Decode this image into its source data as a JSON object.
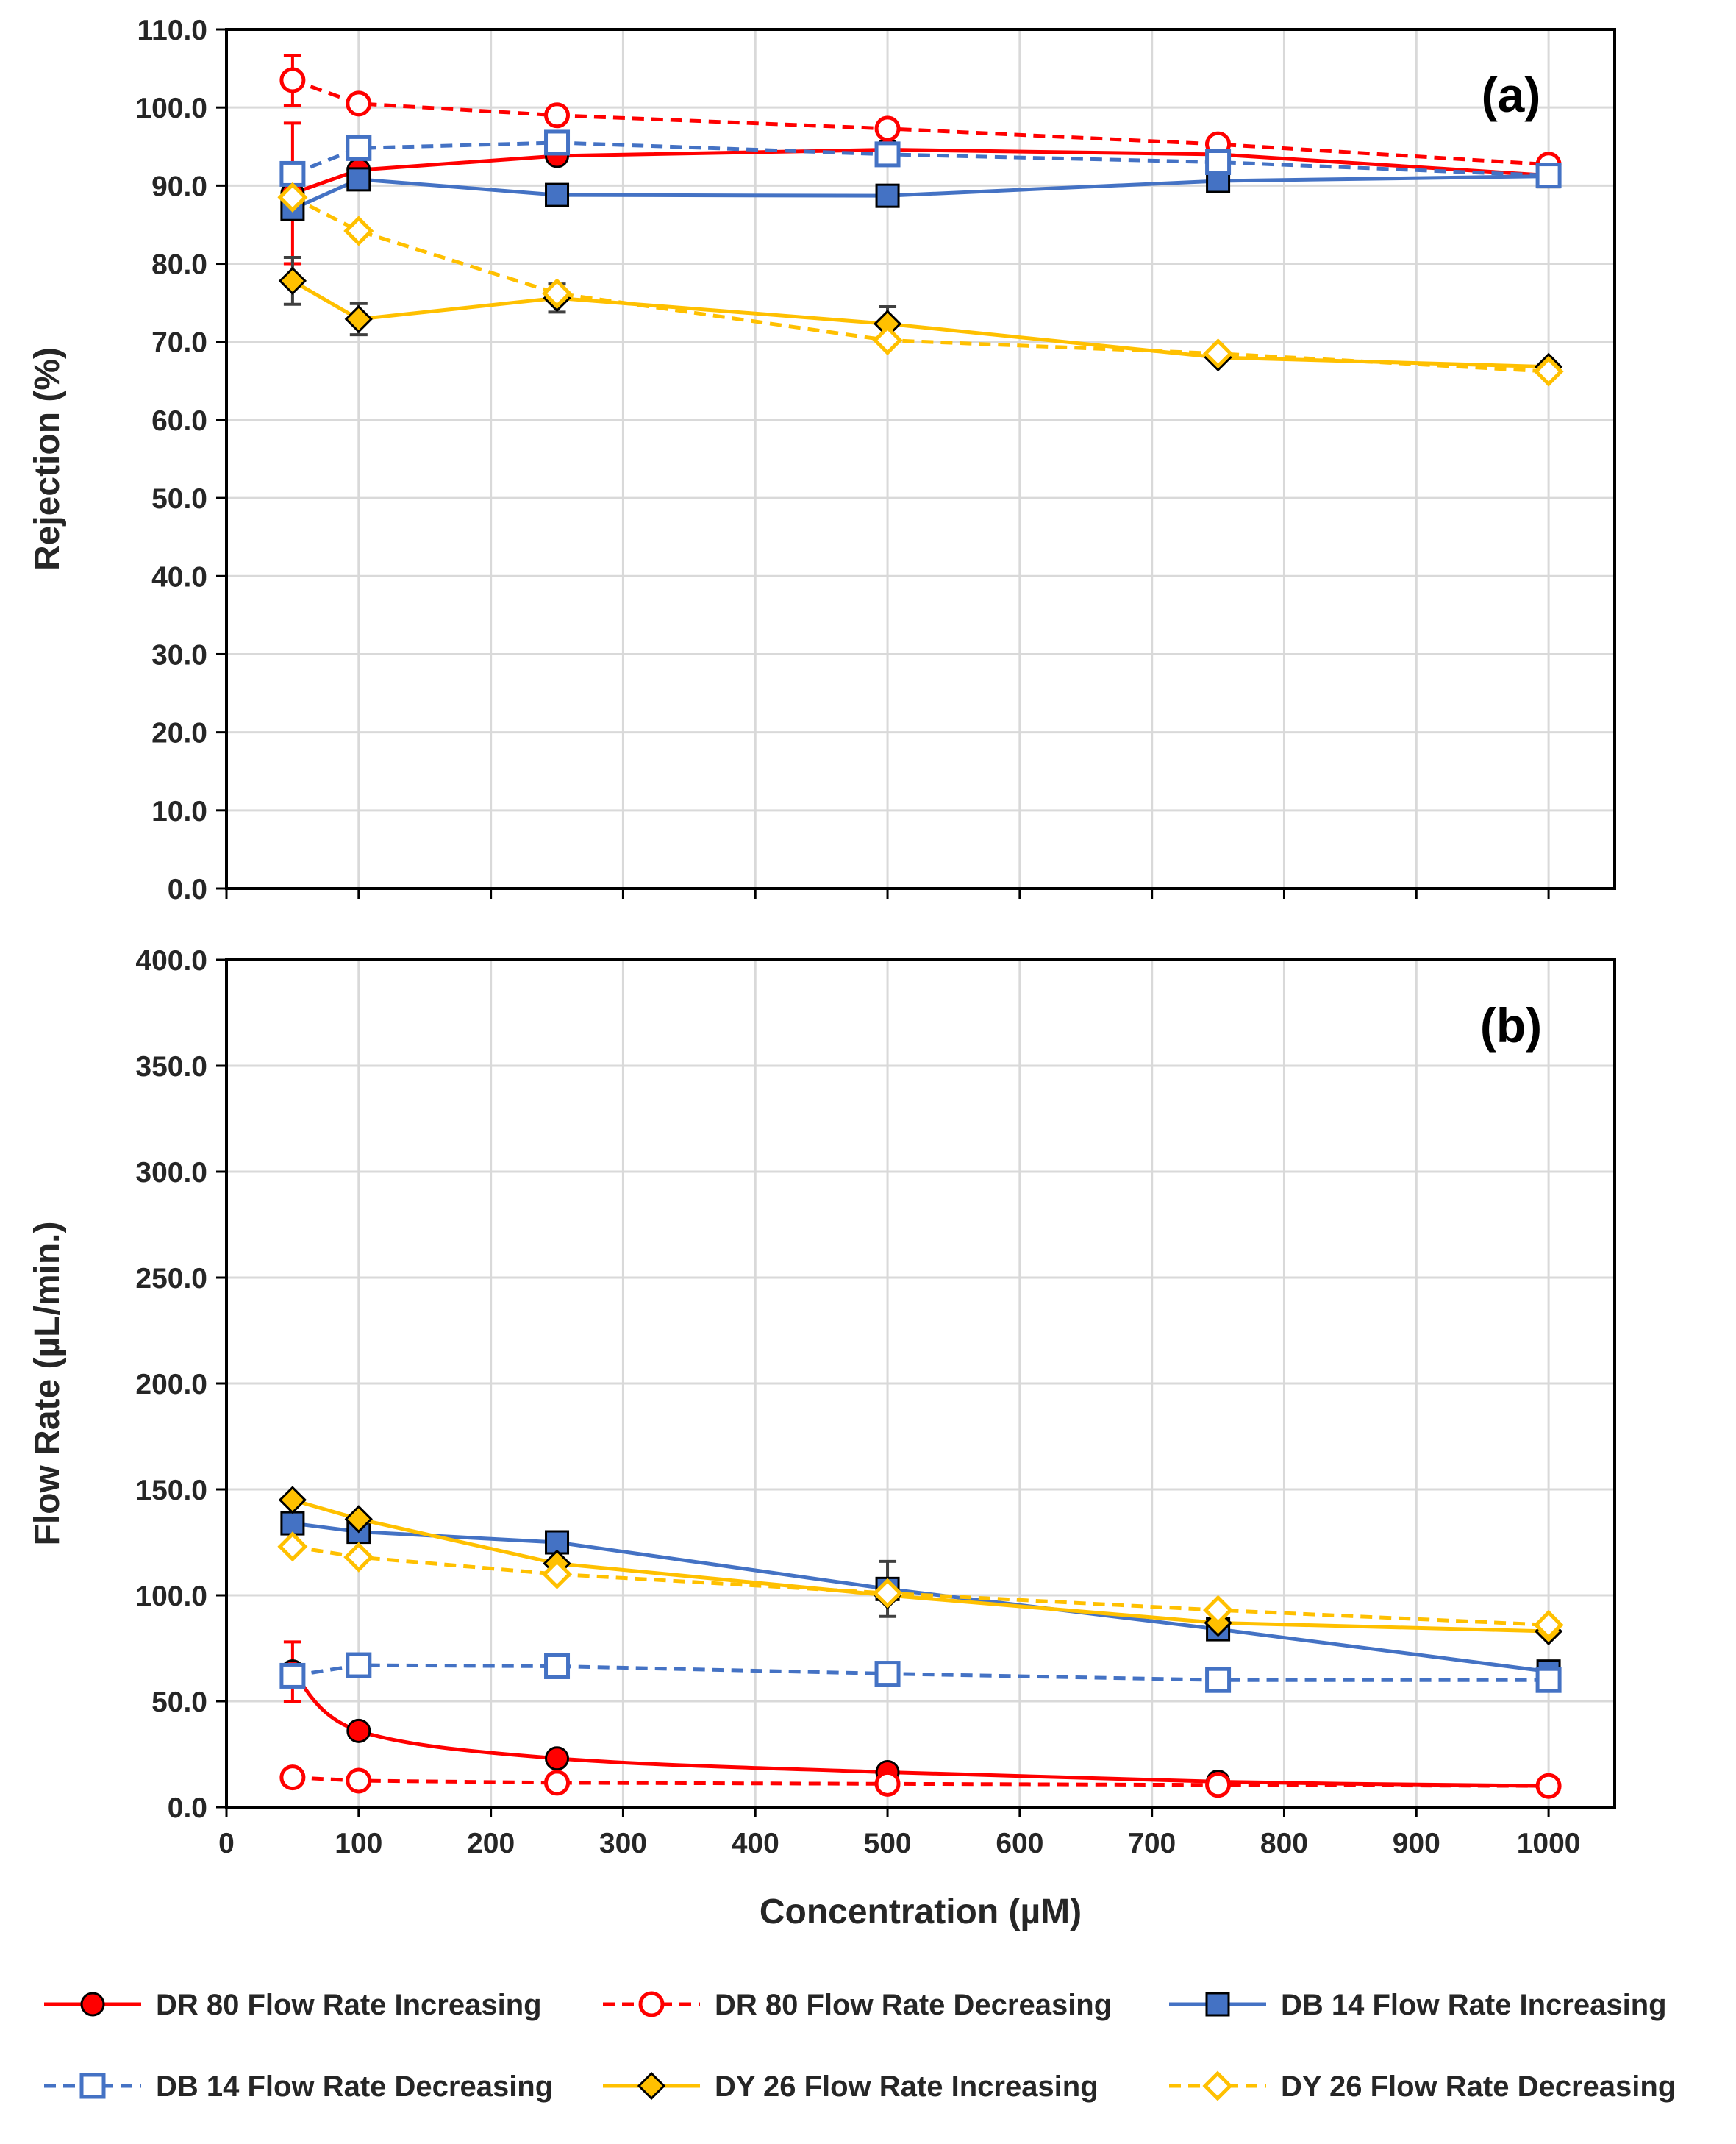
{
  "chart_data": [
    {
      "type": "line",
      "panel": "(a)",
      "xlabel": "",
      "ylabel": "Rejection (%)",
      "xlim": [
        0,
        1050
      ],
      "ylim": [
        0,
        110
      ],
      "yticks": [
        "0.0",
        "10.0",
        "20.0",
        "30.0",
        "40.0",
        "50.0",
        "60.0",
        "70.0",
        "80.0",
        "90.0",
        "100.0",
        "110.0"
      ],
      "xticks": [
        "0",
        "100",
        "200",
        "300",
        "400",
        "500",
        "600",
        "700",
        "800",
        "900",
        "1000"
      ],
      "show_x_tick_labels": false,
      "grid": true,
      "series": [
        {
          "name": "DR 80 Flow Rate Increasing",
          "color": "#ff0000",
          "dash": false,
          "marker": "circle",
          "filled": true,
          "x": [
            50,
            100,
            250,
            500,
            750,
            1000
          ],
          "y": [
            89.0,
            92.0,
            93.8,
            94.6,
            94.0,
            91.3
          ],
          "err": [
            9.0,
            0,
            0,
            0,
            0,
            0
          ]
        },
        {
          "name": "DR 80 Flow Rate Decreasing",
          "color": "#ff0000",
          "dash": true,
          "marker": "circle",
          "filled": false,
          "x": [
            50,
            100,
            250,
            500,
            750,
            1000
          ],
          "y": [
            103.5,
            100.5,
            99.0,
            97.3,
            95.3,
            92.7
          ],
          "err": [
            3.2,
            0,
            0,
            0,
            0,
            0
          ]
        },
        {
          "name": "DB 14 Flow Rate Increasing",
          "color": "#4472c4",
          "dash": false,
          "marker": "square",
          "filled": true,
          "x": [
            50,
            100,
            250,
            500,
            750,
            1000
          ],
          "y": [
            87.0,
            90.8,
            88.8,
            88.7,
            90.6,
            91.2
          ],
          "err": [
            0,
            0,
            0,
            0,
            0,
            0
          ]
        },
        {
          "name": "DB 14 Flow Rate Decreasing",
          "color": "#4472c4",
          "dash": true,
          "marker": "square",
          "filled": false,
          "x": [
            50,
            100,
            250,
            500,
            750,
            1000
          ],
          "y": [
            91.5,
            94.8,
            95.5,
            94.0,
            93.0,
            91.3
          ],
          "err": [
            0,
            0,
            0,
            0,
            0,
            0
          ]
        },
        {
          "name": "DY 26 Flow Rate Increasing",
          "color": "#ffc000",
          "dash": false,
          "marker": "diamond",
          "filled": true,
          "x": [
            50,
            100,
            250,
            500,
            750,
            1000
          ],
          "y": [
            77.8,
            72.9,
            75.6,
            72.3,
            68.0,
            66.8
          ],
          "err": [
            3.0,
            2.0,
            1.8,
            2.2,
            0,
            0
          ]
        },
        {
          "name": "DY 26 Flow Rate Decreasing",
          "color": "#ffc000",
          "dash": true,
          "marker": "diamond",
          "filled": false,
          "x": [
            50,
            100,
            250,
            500,
            750,
            1000
          ],
          "y": [
            88.5,
            84.2,
            76.2,
            70.2,
            68.5,
            66.2
          ],
          "err": [
            0,
            0,
            0,
            0,
            0,
            0
          ]
        }
      ]
    },
    {
      "type": "line",
      "panel": "(b)",
      "xlabel": "Concentration (µM)",
      "ylabel": "Flow Rate (µL/min.)",
      "xlim": [
        0,
        1050
      ],
      "ylim": [
        0,
        400
      ],
      "yticks": [
        "0.0",
        "50.0",
        "100.0",
        "150.0",
        "200.0",
        "250.0",
        "300.0",
        "350.0",
        "400.0"
      ],
      "xticks": [
        "0",
        "100",
        "200",
        "300",
        "400",
        "500",
        "600",
        "700",
        "800",
        "900",
        "1000"
      ],
      "show_x_tick_labels": true,
      "grid": true,
      "series": [
        {
          "name": "DR 80 Flow Rate Increasing",
          "color": "#ff0000",
          "dash": false,
          "marker": "circle",
          "filled": true,
          "smooth": true,
          "x": [
            50,
            100,
            250,
            500,
            750,
            1000
          ],
          "y": [
            64.0,
            36.0,
            23.0,
            16.5,
            12.0,
            10.0
          ],
          "err": [
            14.0,
            0,
            0,
            0,
            0,
            0
          ]
        },
        {
          "name": "DR 80 Flow Rate Decreasing",
          "color": "#ff0000",
          "dash": true,
          "marker": "circle",
          "filled": false,
          "x": [
            50,
            100,
            250,
            500,
            750,
            1000
          ],
          "y": [
            14.0,
            12.5,
            11.5,
            11.0,
            10.5,
            10.0
          ],
          "err": [
            0,
            0,
            0,
            0,
            0,
            0
          ]
        },
        {
          "name": "DB 14 Flow Rate Increasing",
          "color": "#4472c4",
          "dash": false,
          "marker": "square",
          "filled": true,
          "x": [
            50,
            100,
            250,
            500,
            750,
            1000
          ],
          "y": [
            134.0,
            130.0,
            125.0,
            103.0,
            84.0,
            64.0
          ],
          "err": [
            0,
            0,
            0,
            13.0,
            0,
            0
          ]
        },
        {
          "name": "DB 14 Flow Rate Decreasing",
          "color": "#4472c4",
          "dash": true,
          "marker": "square",
          "filled": false,
          "x": [
            50,
            100,
            250,
            500,
            750,
            1000
          ],
          "y": [
            62.0,
            67.0,
            66.5,
            63.0,
            60.0,
            60.0
          ],
          "err": [
            0,
            0,
            0,
            0,
            0,
            0
          ]
        },
        {
          "name": "DY 26 Flow Rate Increasing",
          "color": "#ffc000",
          "dash": false,
          "marker": "diamond",
          "filled": true,
          "x": [
            50,
            100,
            250,
            500,
            750,
            1000
          ],
          "y": [
            145.0,
            136.0,
            115.0,
            100.0,
            87.0,
            83.0
          ],
          "err": [
            0,
            0,
            0,
            0,
            0,
            0
          ]
        },
        {
          "name": "DY 26 Flow Rate Decreasing",
          "color": "#ffc000",
          "dash": true,
          "marker": "diamond",
          "filled": false,
          "x": [
            50,
            100,
            250,
            500,
            750,
            1000
          ],
          "y": [
            123.0,
            118.0,
            110.0,
            101.0,
            93.0,
            86.0
          ],
          "err": [
            0,
            0,
            0,
            0,
            0,
            0
          ]
        }
      ]
    }
  ],
  "legend": {
    "placement": "bottom",
    "entries": [
      "DR 80 Flow Rate Increasing",
      "DR 80 Flow Rate Decreasing",
      "DB 14 Flow Rate Increasing",
      "DB 14 Flow Rate Decreasing",
      "DY 26 Flow Rate Increasing",
      "DY 26 Flow Rate Decreasing"
    ]
  }
}
